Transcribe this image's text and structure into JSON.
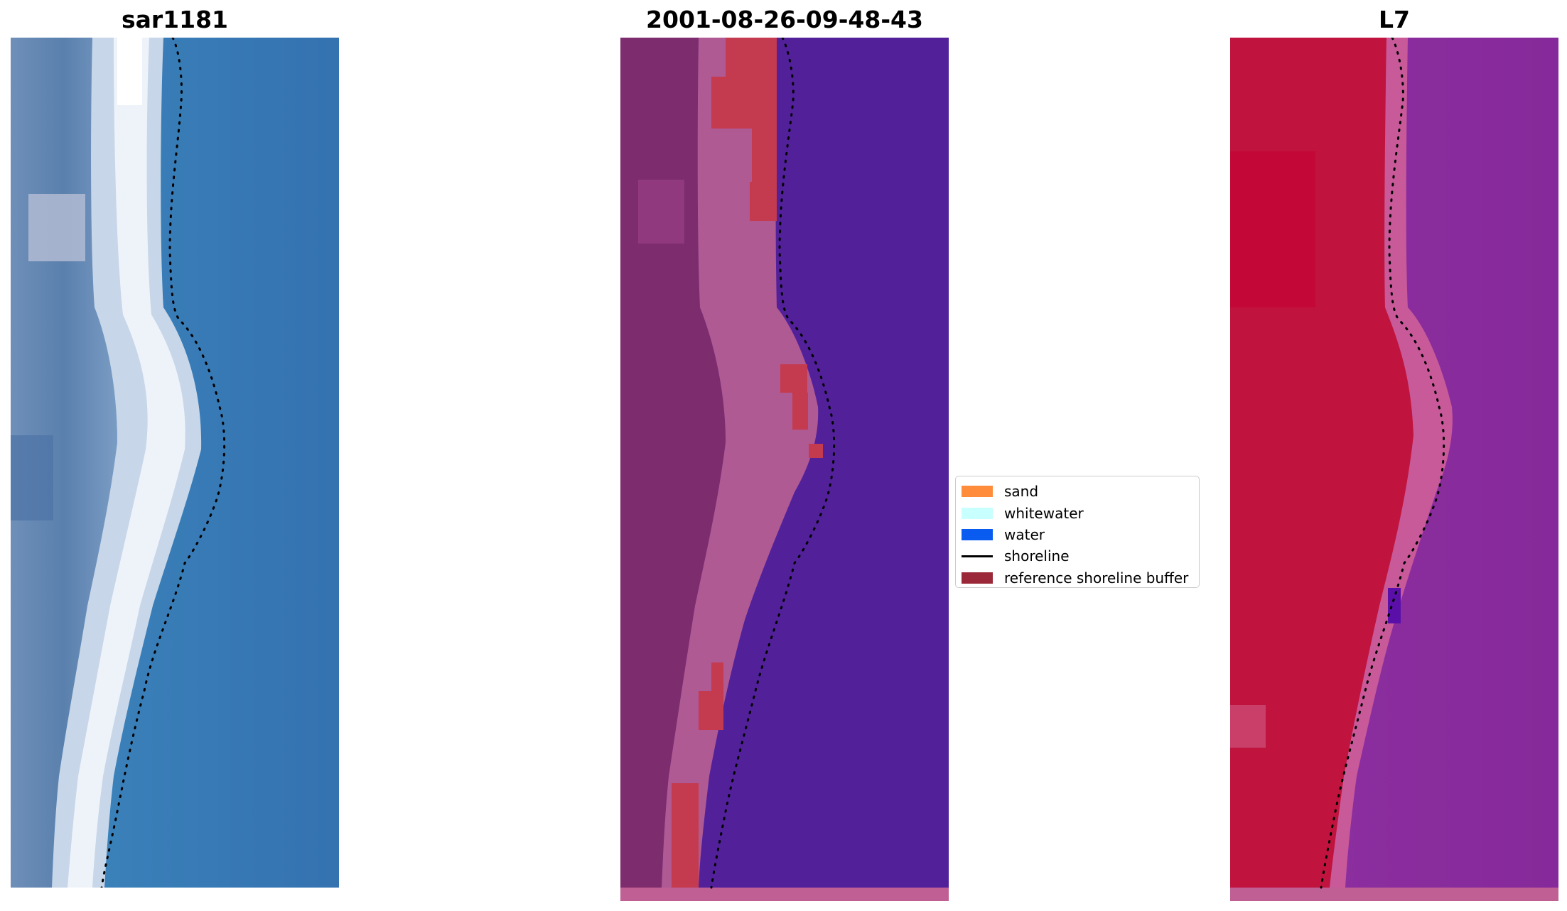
{
  "panels": [
    {
      "title": "sar1181",
      "image": "rgb-satellite-image"
    },
    {
      "title": "2001-08-26-09-48-43",
      "image": "classified-image"
    },
    {
      "title": "L7",
      "image": "false-color-image"
    }
  ],
  "legend": {
    "items": [
      {
        "label": "sand",
        "color": "#ff8c3a",
        "kind": "patch"
      },
      {
        "label": "whitewater",
        "color": "#c8ffff",
        "kind": "patch"
      },
      {
        "label": "water",
        "color": "#0a5cf0",
        "kind": "patch"
      },
      {
        "label": "shoreline",
        "color": "#000000",
        "kind": "line"
      },
      {
        "label": "reference shoreline buffer",
        "color": "#9a2838",
        "kind": "patch"
      }
    ]
  },
  "colors": {
    "rgb_land": "#5f85b0",
    "rgb_sand": "#dde7f2",
    "rgb_water": "#3a7cb6",
    "classified_land": "#7d2c6e",
    "classified_beach": "#b05a94",
    "classified_buffer": "#c43a4e",
    "classified_water": "#52219a",
    "falsecolor_land": "#c0143e",
    "falsecolor_beach": "#c85a9a",
    "falsecolor_water": "#8a2c9c",
    "shoreline_dots": "#000000"
  }
}
